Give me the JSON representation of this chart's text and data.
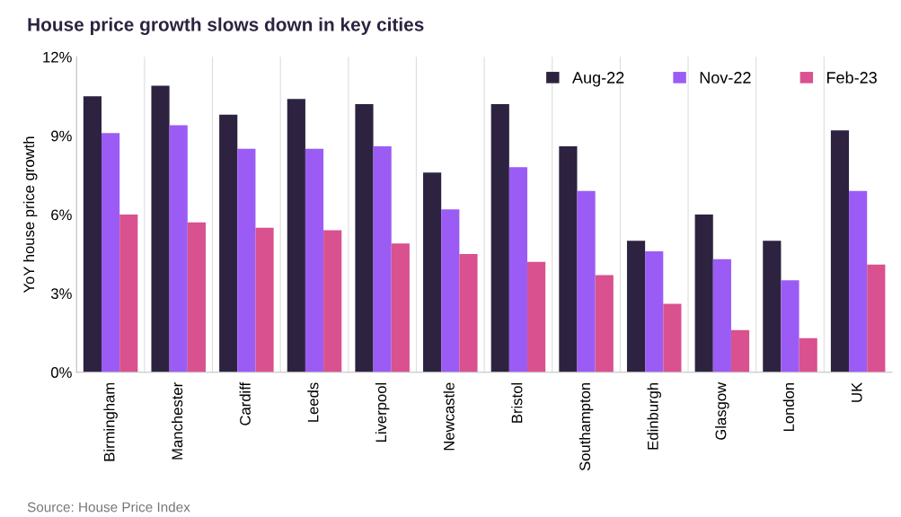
{
  "chart_data": {
    "type": "bar",
    "title": "House price growth slows down in key cities",
    "ylabel": "YoY house price growth",
    "categories": [
      "Birmingham",
      "Manchester",
      "Cardiff",
      "Leeds",
      "Liverpool",
      "Newcastle",
      "Bristol",
      "Southampton",
      "Edinburgh",
      "Glasgow",
      "London",
      "UK"
    ],
    "series": [
      {
        "name": "Aug-22",
        "color": "#2d2340",
        "values": [
          10.5,
          10.9,
          9.8,
          10.4,
          10.2,
          7.6,
          10.2,
          8.6,
          5.0,
          6.0,
          5.0,
          9.2
        ]
      },
      {
        "name": "Nov-22",
        "color": "#9b5cf5",
        "values": [
          9.1,
          9.4,
          8.5,
          8.5,
          8.6,
          6.2,
          7.8,
          6.9,
          4.6,
          4.3,
          3.5,
          6.9
        ]
      },
      {
        "name": "Feb-23",
        "color": "#d9518f",
        "values": [
          6.0,
          5.7,
          5.5,
          5.4,
          4.9,
          4.5,
          4.2,
          3.7,
          2.6,
          1.6,
          1.3,
          4.1
        ]
      }
    ],
    "ylim": [
      0,
      12
    ],
    "yticks": [
      {
        "value": 0,
        "label": "0%"
      },
      {
        "value": 3,
        "label": "3%"
      },
      {
        "value": 6,
        "label": "6%"
      },
      {
        "value": 9,
        "label": "9%"
      },
      {
        "value": 12,
        "label": "12%"
      }
    ],
    "legend": "top right",
    "annotations": [
      "Source: House Price Index"
    ]
  }
}
